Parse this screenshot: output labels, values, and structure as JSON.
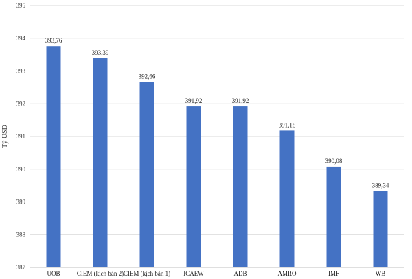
{
  "chart_data": {
    "type": "bar",
    "title": "",
    "xlabel": "",
    "ylabel": "Tỷ USD",
    "ylim": [
      387,
      395
    ],
    "yticks": [
      387,
      388,
      389,
      390,
      391,
      392,
      393,
      394,
      395
    ],
    "grid": true,
    "categories": [
      "UOB",
      "CIEM (kịch bản 2)",
      "CIEM (kịch bản 1)",
      "ICAEW",
      "ADB",
      "AMRO",
      "IMF",
      "WB"
    ],
    "values": [
      393.76,
      393.39,
      392.66,
      391.92,
      391.92,
      391.18,
      390.08,
      389.34
    ],
    "data_labels": [
      "393,76",
      "393,39",
      "392,66",
      "391,92",
      "391,92",
      "391,18",
      "390,08",
      "389,34"
    ],
    "colors": {
      "bar": "#4472C4",
      "grid": "#d9d9d9"
    }
  }
}
